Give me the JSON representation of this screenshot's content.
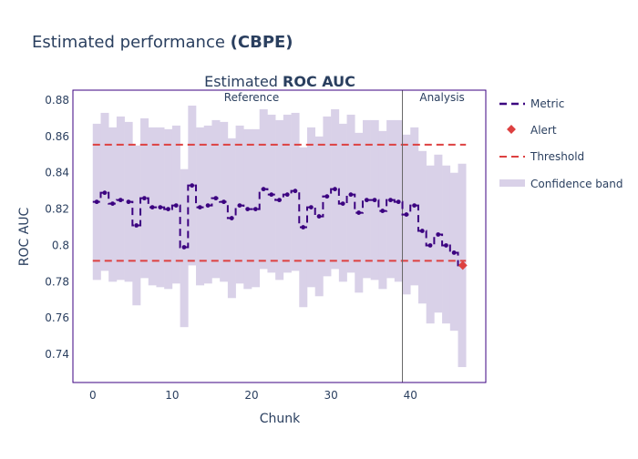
{
  "page_title": {
    "prefix": "Estimated performance ",
    "emphasis": "(CBPE)"
  },
  "colors": {
    "metric": "#3b0280",
    "alert": "#dd4040",
    "threshold": "#dd4040",
    "band": "#d9d1e8",
    "frame": "#3b0280",
    "divider": "#666666",
    "text": "#2a3f5f"
  },
  "legend": {
    "metric": "Metric",
    "alert": "Alert",
    "threshold": "Threshold",
    "band": "Confidence band"
  },
  "chart_data": {
    "type": "line",
    "title_prefix": "Estimated ",
    "title_emphasis": "ROC AUC",
    "xlabel": "Chunk",
    "ylabel": "ROC AUC",
    "xlim": [
      -2.5,
      49.5
    ],
    "ylim": [
      0.7245,
      0.8855
    ],
    "x_ticks": [
      0,
      10,
      20,
      30,
      40
    ],
    "y_ticks": [
      0.74,
      0.76,
      0.78,
      0.8,
      0.82,
      0.84,
      0.86,
      0.88
    ],
    "y_tick_labels": [
      "0.74",
      "0.76",
      "0.78",
      "0.8",
      "0.82",
      "0.84",
      "0.86",
      "0.88"
    ],
    "grid": false,
    "legend_position": "right",
    "period_split": 39,
    "periods": [
      {
        "label": "Reference",
        "center": 20
      },
      {
        "label": "Analysis",
        "center": 44
      }
    ],
    "thresholds": {
      "upper": 0.8555,
      "lower": 0.7915
    },
    "chunks": [
      0,
      1,
      2,
      3,
      4,
      5,
      6,
      7,
      8,
      9,
      10,
      11,
      12,
      13,
      14,
      15,
      16,
      17,
      18,
      19,
      20,
      21,
      22,
      23,
      24,
      25,
      26,
      27,
      28,
      29,
      30,
      31,
      32,
      33,
      34,
      35,
      36,
      37,
      38,
      39,
      40,
      41,
      42,
      43,
      44,
      45,
      46
    ],
    "metric": [
      0.824,
      0.829,
      0.823,
      0.825,
      0.824,
      0.811,
      0.826,
      0.821,
      0.821,
      0.82,
      0.822,
      0.799,
      0.833,
      0.821,
      0.822,
      0.826,
      0.824,
      0.815,
      0.822,
      0.82,
      0.82,
      0.831,
      0.828,
      0.825,
      0.828,
      0.83,
      0.81,
      0.821,
      0.816,
      0.827,
      0.831,
      0.823,
      0.828,
      0.818,
      0.825,
      0.825,
      0.819,
      0.825,
      0.824,
      0.817,
      0.822,
      0.808,
      0.8,
      0.806,
      0.8,
      0.796,
      0.789
    ],
    "upper_band": [
      0.867,
      0.873,
      0.865,
      0.871,
      0.868,
      0.855,
      0.87,
      0.865,
      0.865,
      0.864,
      0.866,
      0.842,
      0.877,
      0.865,
      0.866,
      0.869,
      0.868,
      0.859,
      0.866,
      0.864,
      0.864,
      0.875,
      0.872,
      0.869,
      0.872,
      0.873,
      0.854,
      0.865,
      0.86,
      0.871,
      0.875,
      0.867,
      0.872,
      0.862,
      0.869,
      0.869,
      0.863,
      0.869,
      0.869,
      0.861,
      0.865,
      0.852,
      0.844,
      0.85,
      0.844,
      0.84,
      0.845
    ],
    "lower_band": [
      0.781,
      0.786,
      0.78,
      0.781,
      0.78,
      0.767,
      0.782,
      0.778,
      0.777,
      0.776,
      0.779,
      0.755,
      0.789,
      0.778,
      0.779,
      0.782,
      0.78,
      0.771,
      0.779,
      0.776,
      0.777,
      0.787,
      0.785,
      0.781,
      0.785,
      0.786,
      0.766,
      0.777,
      0.772,
      0.783,
      0.787,
      0.78,
      0.785,
      0.774,
      0.782,
      0.781,
      0.776,
      0.782,
      0.78,
      0.773,
      0.778,
      0.768,
      0.757,
      0.763,
      0.757,
      0.753,
      0.733
    ],
    "alerts": [
      {
        "x": 46.6,
        "y": 0.789
      }
    ]
  }
}
